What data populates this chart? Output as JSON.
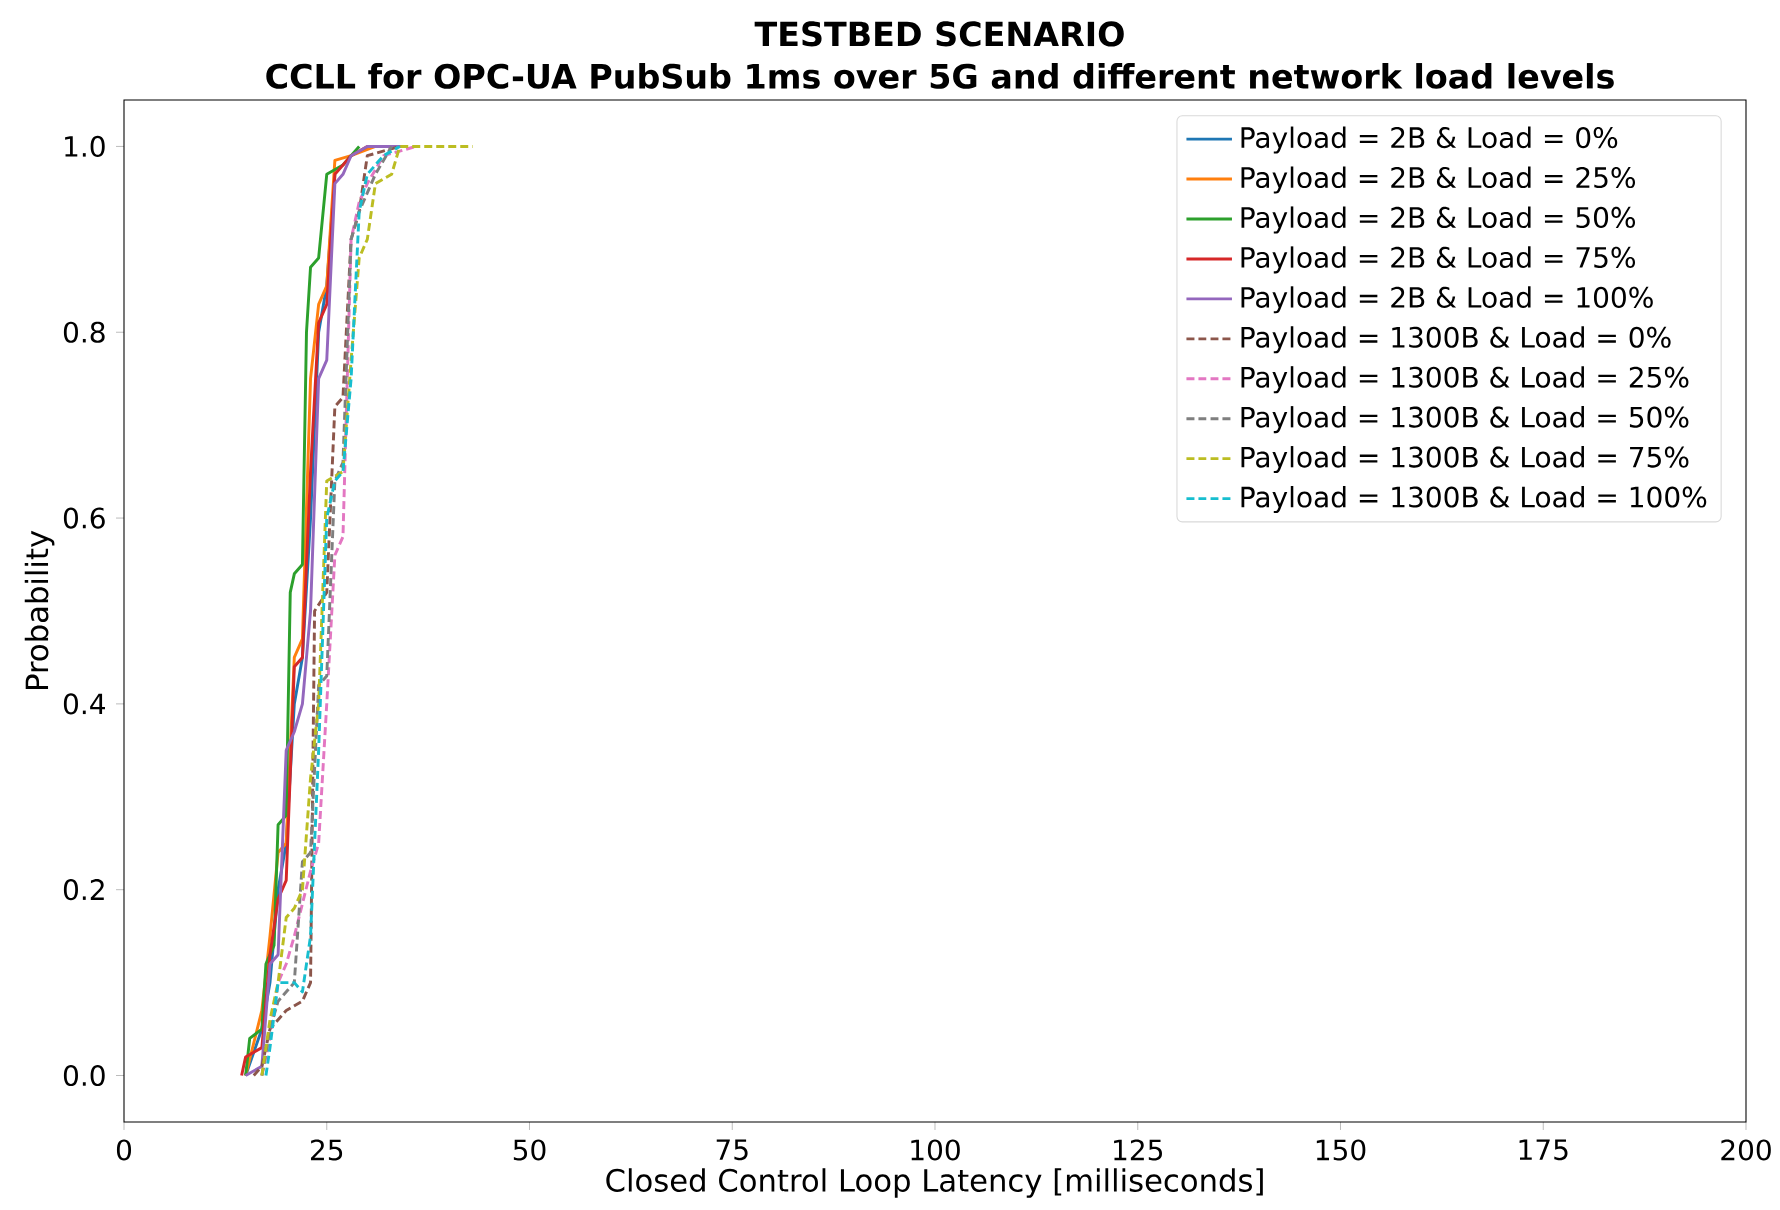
{
  "chart_data": {
    "type": "line",
    "title": "TESTBED SCENARIO",
    "subtitle": "CCLL for OPC-UA PubSub 1ms over 5G and different network load levels",
    "xlabel": "Closed Control Loop Latency [milliseconds]",
    "ylabel": "Probability",
    "xlim": [
      0,
      200
    ],
    "ylim": [
      -0.05,
      1.05
    ],
    "xticks": [
      0,
      25,
      50,
      75,
      100,
      125,
      150,
      175,
      200
    ],
    "yticks": [
      {
        "value": 0,
        "label": "0.0"
      },
      {
        "value": 0.2,
        "label": "0.2"
      },
      {
        "value": 0.4,
        "label": "0.4"
      },
      {
        "value": 0.6,
        "label": "0.6"
      },
      {
        "value": 0.8,
        "label": "0.8"
      },
      {
        "value": 1,
        "label": "1.0"
      }
    ],
    "grid": false,
    "legend": "top right",
    "marker": "none",
    "series": [
      {
        "name": "Payload = 2B & Load = 0%",
        "color": "#1f77b4",
        "line_style": "solid",
        "x": [
          15,
          17,
          18,
          19,
          20,
          21,
          22,
          23,
          24,
          25,
          26
        ],
        "values": [
          0,
          0.05,
          0.1,
          0.2,
          0.25,
          0.4,
          0.45,
          0.6,
          0.8,
          0.85,
          0.97
        ]
      },
      {
        "name": "Payload = 2B & Load = 25%",
        "color": "#ff7f0e",
        "line_style": "solid",
        "x": [
          15,
          17,
          18,
          19,
          20,
          21,
          22,
          23,
          24,
          25,
          26,
          28,
          31
        ],
        "values": [
          0,
          0.07,
          0.15,
          0.24,
          0.25,
          0.45,
          0.47,
          0.75,
          0.83,
          0.85,
          0.985,
          0.99,
          1.0
        ]
      },
      {
        "name": "Payload = 2B & Load = 50%",
        "color": "#2ca02c",
        "line_style": "solid",
        "x": [
          15,
          15.5,
          17,
          17.5,
          18.5,
          19,
          20,
          20.5,
          21,
          22,
          22.5,
          23,
          24,
          25,
          27,
          29
        ],
        "values": [
          0,
          0.04,
          0.05,
          0.12,
          0.14,
          0.27,
          0.28,
          0.52,
          0.54,
          0.55,
          0.8,
          0.87,
          0.88,
          0.97,
          0.98,
          1.0
        ]
      },
      {
        "name": "Payload = 2B & Load = 75%",
        "color": "#d62728",
        "line_style": "solid",
        "x": [
          14.5,
          15,
          17,
          18,
          19,
          20,
          21,
          22,
          23,
          24,
          25,
          26,
          28,
          30,
          34
        ],
        "values": [
          0,
          0.02,
          0.03,
          0.13,
          0.19,
          0.21,
          0.44,
          0.45,
          0.65,
          0.81,
          0.83,
          0.97,
          0.99,
          1.0,
          1.0
        ]
      },
      {
        "name": "Payload = 2B & Load = 100%",
        "color": "#9467bd",
        "line_style": "solid",
        "x": [
          15,
          17,
          18,
          19,
          20,
          21,
          22,
          23,
          24,
          25,
          26,
          27,
          28,
          30,
          35
        ],
        "values": [
          0,
          0.01,
          0.12,
          0.13,
          0.35,
          0.37,
          0.4,
          0.5,
          0.75,
          0.77,
          0.96,
          0.97,
          0.99,
          1.0,
          1.0
        ]
      },
      {
        "name": "Payload = 1300B & Load = 0%",
        "color": "#8c564b",
        "line_style": "dashed",
        "x": [
          16,
          17,
          18,
          19,
          20,
          22,
          23,
          23.5,
          25,
          26,
          27,
          28,
          29,
          30,
          34
        ],
        "values": [
          0,
          0.01,
          0.05,
          0.06,
          0.07,
          0.08,
          0.1,
          0.5,
          0.52,
          0.72,
          0.73,
          0.9,
          0.93,
          0.99,
          1.0
        ]
      },
      {
        "name": "Payload = 1300B & Load = 25%",
        "color": "#e377c2",
        "line_style": "dashed",
        "x": [
          17,
          18,
          19,
          20,
          21,
          23,
          24,
          25,
          26,
          27,
          28,
          29,
          30,
          32,
          36
        ],
        "values": [
          0,
          0.04,
          0.1,
          0.12,
          0.15,
          0.22,
          0.25,
          0.4,
          0.56,
          0.58,
          0.9,
          0.94,
          0.96,
          0.99,
          1.0
        ]
      },
      {
        "name": "Payload = 1300B & Load = 50%",
        "color": "#7f7f7f",
        "line_style": "dashed",
        "x": [
          17,
          18,
          19,
          21,
          22,
          23,
          24,
          25,
          26,
          27,
          28,
          29,
          31,
          33
        ],
        "values": [
          0,
          0.05,
          0.08,
          0.1,
          0.23,
          0.24,
          0.42,
          0.43,
          0.64,
          0.66,
          0.9,
          0.93,
          0.97,
          1.0
        ]
      },
      {
        "name": "Payload = 1300B & Load = 75%",
        "color": "#bcbd22",
        "line_style": "dashed",
        "x": [
          17,
          18,
          19,
          20,
          21,
          22,
          23,
          24,
          25,
          27,
          28,
          29,
          30,
          31,
          33,
          34,
          43
        ],
        "values": [
          0,
          0.06,
          0.1,
          0.17,
          0.18,
          0.2,
          0.32,
          0.4,
          0.64,
          0.65,
          0.77,
          0.88,
          0.9,
          0.96,
          0.97,
          1.0,
          1.0
        ]
      },
      {
        "name": "Payload = 1300B & Load = 100%",
        "color": "#17becf",
        "line_style": "dashed",
        "x": [
          17.5,
          18,
          19,
          21,
          22,
          23,
          24,
          25,
          26,
          27,
          28,
          29,
          30,
          32,
          34
        ],
        "values": [
          0,
          0.03,
          0.1,
          0.1,
          0.09,
          0.15,
          0.35,
          0.6,
          0.64,
          0.65,
          0.75,
          0.93,
          0.97,
          0.99,
          1.0
        ]
      }
    ]
  }
}
